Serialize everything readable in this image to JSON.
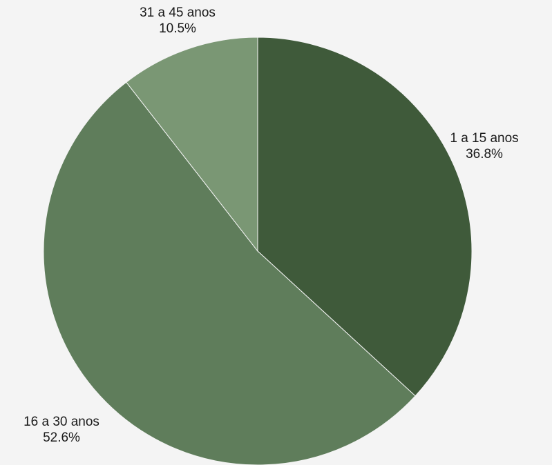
{
  "chart_data": {
    "type": "pie",
    "title": "",
    "slices": [
      {
        "label": "1 a 15 anos",
        "value": 36.8,
        "value_label": "36.8%",
        "color": "#3f5a3a"
      },
      {
        "label": "16 a 30 anos",
        "value": 52.6,
        "value_label": "52.6%",
        "color": "#5f7d5b"
      },
      {
        "label": "31 a 45 anos",
        "value": 10.5,
        "value_label": "10.5%",
        "color": "#7a9774"
      }
    ],
    "start": "top",
    "direction": "clockwise",
    "legend": "none"
  }
}
